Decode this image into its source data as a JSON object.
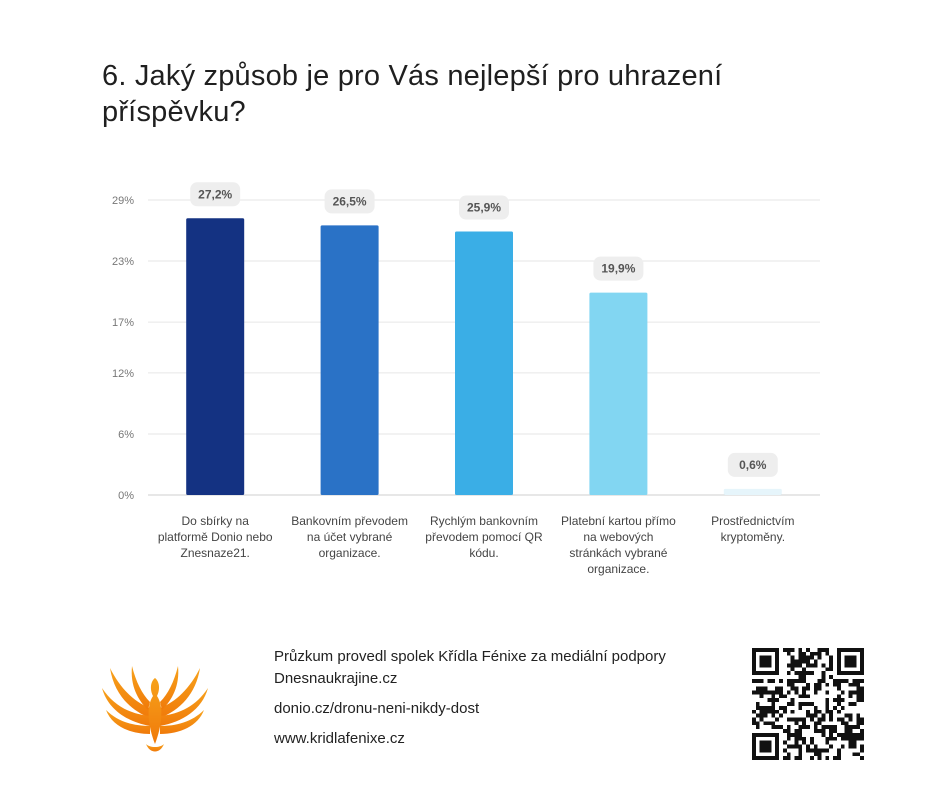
{
  "title": "6. Jaký způsob je pro Vás nejlepší pro uhrazení příspěvku?",
  "chart_data": {
    "type": "bar",
    "categories": [
      "Do sbírky na platformě Donio nebo Znesnaze21.",
      "Bankovním převodem na účet vybrané organizace.",
      "Rychlým bankovním převodem pomocí QR kódu.",
      "Platební kartou přímo na webových stránkách vybrané organizace.",
      "Prostřednictvím kryptoměny."
    ],
    "category_lines": [
      [
        "Do sbírky na",
        "platformě Donio nebo",
        "Znesnaze21."
      ],
      [
        "Bankovním převodem",
        "na účet vybrané",
        "organizace."
      ],
      [
        "Rychlým bankovním",
        "převodem pomocí QR",
        "kódu."
      ],
      [
        "Platební kartou přímo",
        "na webových",
        "stránkách vybrané",
        "organizace."
      ],
      [
        "Prostřednictvím",
        "kryptoměny."
      ]
    ],
    "values": [
      27.2,
      26.5,
      25.9,
      19.9,
      0.6
    ],
    "value_labels": [
      "27,2%",
      "26,5%",
      "25,9%",
      "19,9%",
      "0,6%"
    ],
    "colors": [
      "#143282",
      "#2a72c6",
      "#3aaee6",
      "#82d6f2",
      "#e6f5fb"
    ],
    "y_ticks": [
      0,
      6,
      12,
      17,
      23,
      29
    ],
    "y_tick_labels": [
      "0%",
      "6%",
      "12%",
      "17%",
      "23%",
      "29%"
    ],
    "ylim": [
      0,
      29
    ],
    "grid": true,
    "legend": "none"
  },
  "footer": {
    "line1": "Průzkum provedl spolek Křídla Fénixe za mediální podpory Dnesnaukrajine.cz",
    "line2": "donio.cz/dronu-neni-nikdy-dost",
    "line3": "www.kridlafenixe.cz"
  },
  "logo_icon": "phoenix-logo-icon",
  "qr_icon": "qr-code-icon"
}
